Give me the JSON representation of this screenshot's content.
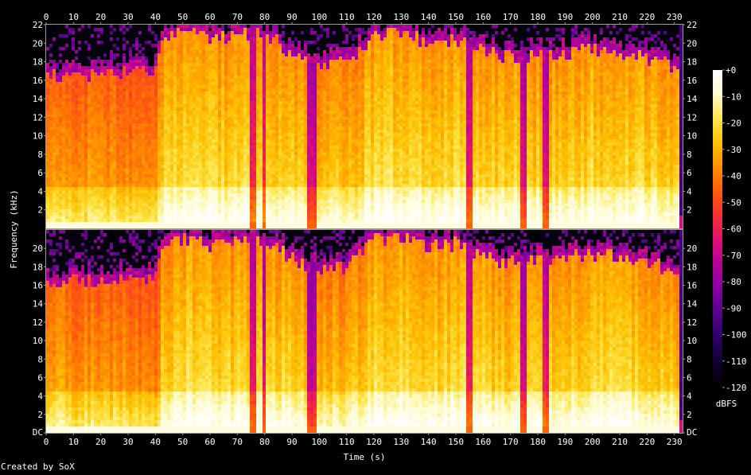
{
  "chart_data": {
    "type": "heatmap",
    "xlabel": "Time (s)",
    "ylabel": "Frequency (kHz)",
    "xlim": [
      0,
      233
    ],
    "x_ticks": [
      0,
      10,
      20,
      30,
      40,
      50,
      60,
      70,
      80,
      90,
      100,
      110,
      120,
      130,
      140,
      150,
      160,
      170,
      180,
      190,
      200,
      210,
      220,
      230
    ],
    "ylim": [
      0,
      22
    ],
    "y_ticks_top": [
      "2",
      "4",
      "6",
      "8",
      "10",
      "12",
      "14",
      "16",
      "18",
      "20",
      "22"
    ],
    "y_ticks_bottom": [
      "DC",
      "2",
      "4",
      "6",
      "8",
      "10",
      "12",
      "14",
      "16",
      "18",
      "20"
    ],
    "channels": 2,
    "colorbar": {
      "label": "dBFS",
      "ticks": [
        "+0",
        "-10",
        "-20",
        "-30",
        "-40",
        "-50",
        "-60",
        "-70",
        "-80",
        "-90",
        "-100",
        "-110",
        "-120"
      ],
      "range": [
        -120,
        0
      ],
      "colors": [
        "#000000",
        "#10002e",
        "#2a0063",
        "#55008b",
        "#8400a1",
        "#b5009c",
        "#e01073",
        "#f52d36",
        "#ff5a0c",
        "#ff8c00",
        "#ffbf00",
        "#ffe64a",
        "#fffbd0",
        "#ffffff"
      ]
    },
    "loudness_profile": [
      {
        "t": 0,
        "level": 0.78,
        "cutoff": 16.5
      },
      {
        "t": 10,
        "level": 0.74,
        "cutoff": 16.4
      },
      {
        "t": 20,
        "level": 0.76,
        "cutoff": 16.6
      },
      {
        "t": 30,
        "level": 0.75,
        "cutoff": 16.8
      },
      {
        "t": 40,
        "level": 0.72,
        "cutoff": 16.7
      },
      {
        "t": 43,
        "level": 0.84,
        "cutoff": 20.5
      },
      {
        "t": 50,
        "level": 0.88,
        "cutoff": 21.0
      },
      {
        "t": 60,
        "level": 0.86,
        "cutoff": 20.5
      },
      {
        "t": 70,
        "level": 0.85,
        "cutoff": 20.8
      },
      {
        "t": 80,
        "level": 0.87,
        "cutoff": 21.0
      },
      {
        "t": 90,
        "level": 0.84,
        "cutoff": 19.0
      },
      {
        "t": 98,
        "level": 0.8,
        "cutoff": 17.8
      },
      {
        "t": 110,
        "level": 0.8,
        "cutoff": 18.0
      },
      {
        "t": 120,
        "level": 0.87,
        "cutoff": 21.0
      },
      {
        "t": 130,
        "level": 0.88,
        "cutoff": 21.2
      },
      {
        "t": 140,
        "level": 0.86,
        "cutoff": 20.0
      },
      {
        "t": 150,
        "level": 0.87,
        "cutoff": 20.5
      },
      {
        "t": 160,
        "level": 0.85,
        "cutoff": 19.0
      },
      {
        "t": 170,
        "level": 0.84,
        "cutoff": 18.5
      },
      {
        "t": 180,
        "level": 0.84,
        "cutoff": 18.6
      },
      {
        "t": 190,
        "level": 0.85,
        "cutoff": 19.0
      },
      {
        "t": 200,
        "level": 0.86,
        "cutoff": 19.5
      },
      {
        "t": 210,
        "level": 0.86,
        "cutoff": 19.0
      },
      {
        "t": 220,
        "level": 0.85,
        "cutoff": 18.5
      },
      {
        "t": 230,
        "level": 0.82,
        "cutoff": 17.5
      }
    ],
    "dips": [
      {
        "t": 75.5,
        "width": 1.2
      },
      {
        "t": 79.5,
        "width": 0.8
      },
      {
        "t": 97.5,
        "width": 1.5
      },
      {
        "t": 155.0,
        "width": 0.8
      },
      {
        "t": 174.5,
        "width": 1.2
      },
      {
        "t": 182.5,
        "width": 1.2
      },
      {
        "t": 183.5,
        "width": 0.8
      }
    ],
    "tail": {
      "start": 231.5,
      "end": 233
    }
  },
  "footer": {
    "credit": "Created by SoX"
  }
}
